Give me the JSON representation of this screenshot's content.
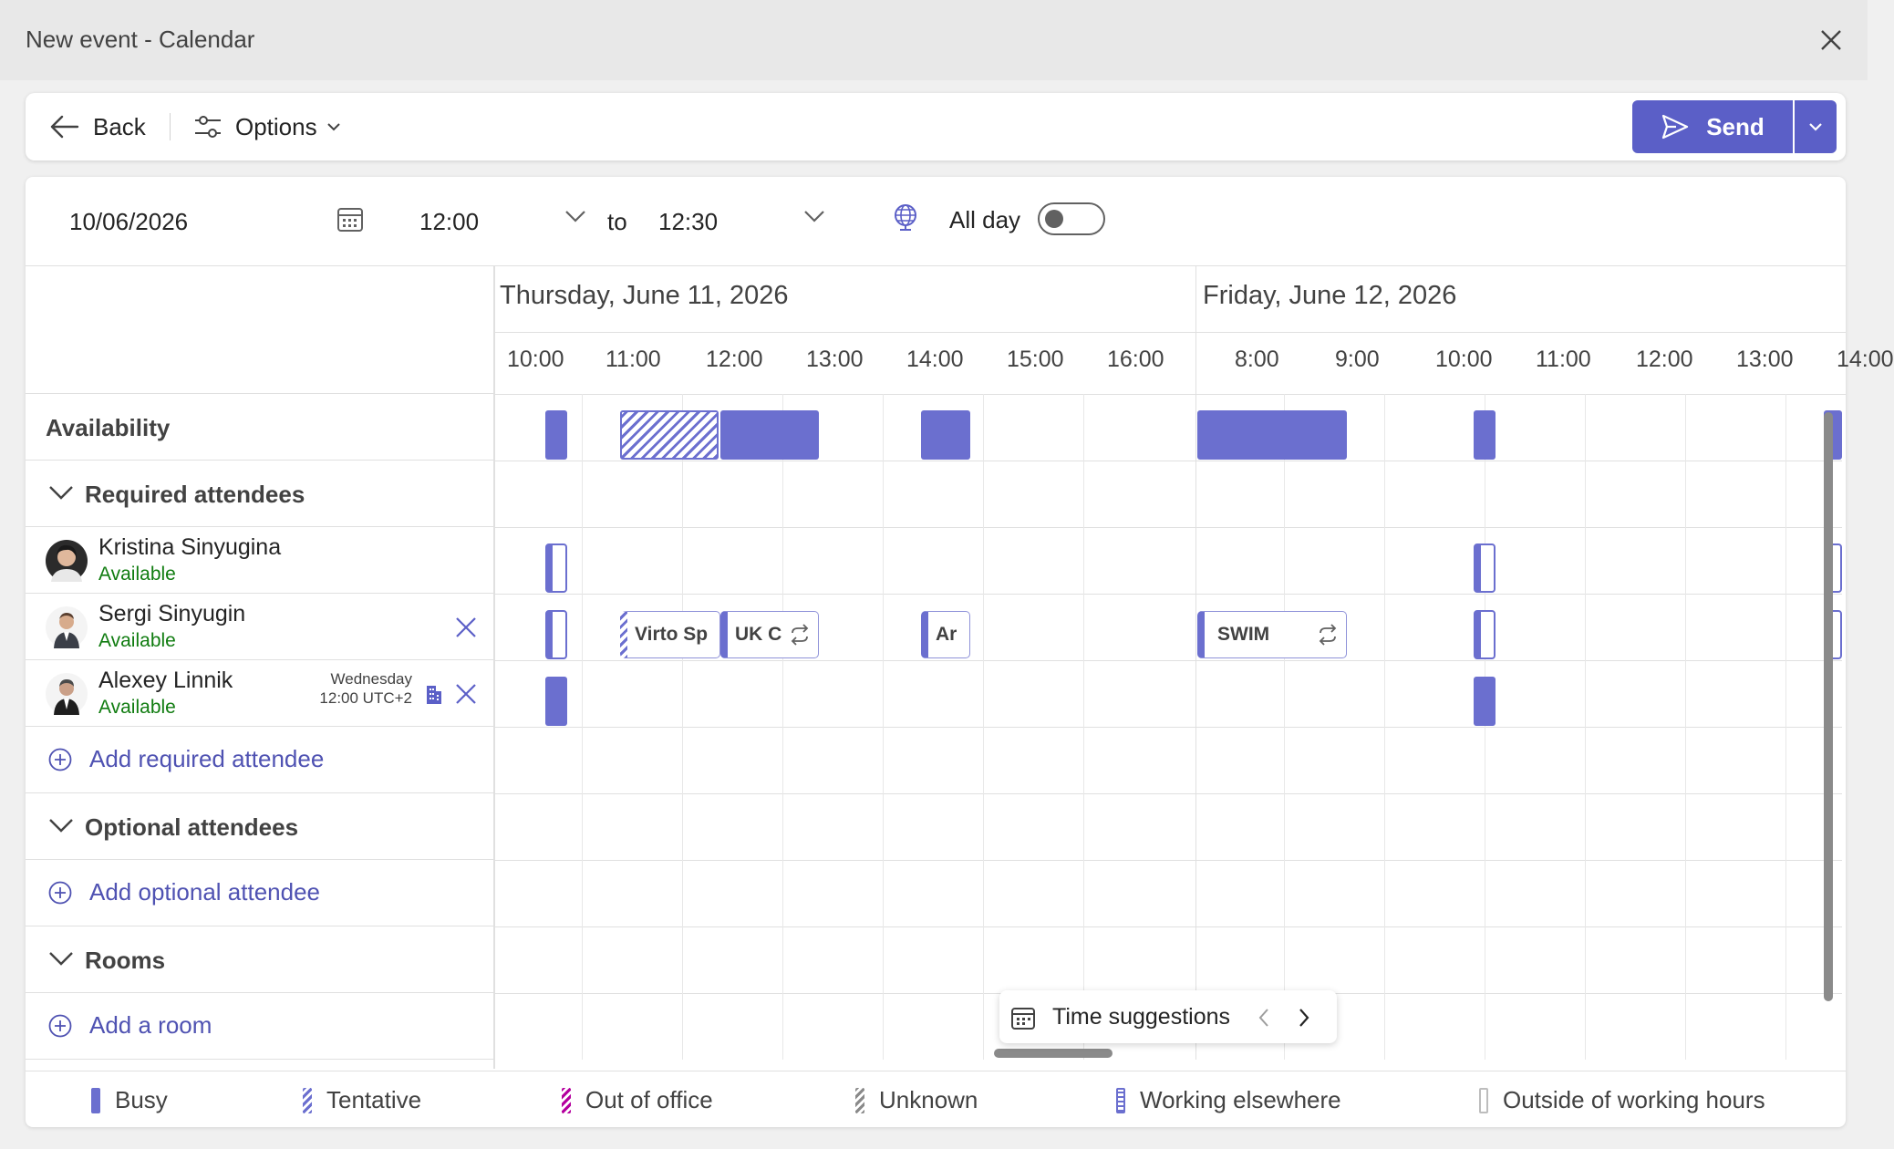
{
  "window": {
    "title": "New event - Calendar"
  },
  "toolbar": {
    "back_label": "Back",
    "options_label": "Options",
    "send_label": "Send"
  },
  "event": {
    "date": "10/06/2026",
    "start_time": "12:00",
    "to_label": "to",
    "end_time": "12:30",
    "all_day_label": "All day",
    "all_day": false
  },
  "grid": {
    "days": [
      "Thursday, June 11, 2026",
      "Friday, June 12, 2026"
    ],
    "hours_day1": [
      "10:00",
      "11:00",
      "12:00",
      "13:00",
      "14:00",
      "15:00",
      "16:00"
    ],
    "hours_day2": [
      "8:00",
      "9:00",
      "10:00",
      "11:00",
      "12:00",
      "13:00",
      "14:00"
    ]
  },
  "sections": {
    "availability": "Availability",
    "required": "Required attendees",
    "add_required": "Add required attendee",
    "optional": "Optional attendees",
    "add_optional": "Add optional attendee",
    "rooms": "Rooms",
    "add_room": "Add a room"
  },
  "attendees": [
    {
      "name": "Kristina Sinyugina",
      "status": "Available"
    },
    {
      "name": "Sergi Sinyugin",
      "status": "Available"
    },
    {
      "name": "Alexey Linnik",
      "status": "Available",
      "tz_day": "Wednesday",
      "tz_time": "12:00 UTC+2"
    }
  ],
  "events": {
    "virto": "Virto Sp",
    "uk": "UK C",
    "ar": "Ar",
    "swim": "SWIM"
  },
  "suggestions": {
    "label": "Time suggestions"
  },
  "legend": {
    "busy": "Busy",
    "tentative": "Tentative",
    "ooo": "Out of office",
    "unknown": "Unknown",
    "elsewhere": "Working elsewhere",
    "outside": "Outside of working hours"
  },
  "colors": {
    "accent": "#5b5fc7",
    "busy": "#6b6fcf",
    "available": "#107c10",
    "ooo": "#b4009e"
  }
}
